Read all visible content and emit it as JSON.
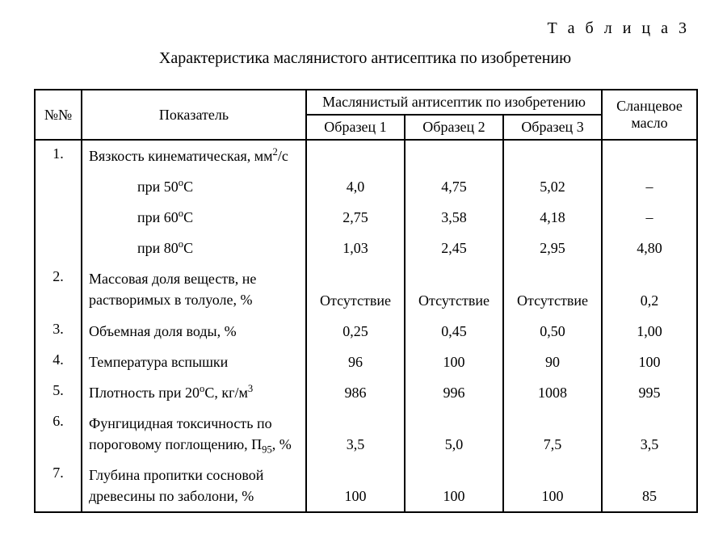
{
  "table_label": "Т а б л и ц а 3",
  "title": "Характеристика маслянистого антисептика по изобретению",
  "headers": {
    "num": "№№",
    "param": "Показатель",
    "group": "Маслянистый антисептик по изобретению",
    "s1": "Образец 1",
    "s2": "Образец 2",
    "s3": "Образец 3",
    "shale": "Сланцевое масло"
  },
  "rows": [
    {
      "num": "1.",
      "param_html": "Вязкость кинематическая, мм<sup>2</sup>/с",
      "s1": "",
      "s2": "",
      "s3": "",
      "shale": ""
    },
    {
      "num": "",
      "param_html": "<span class=\"indent\">при 50<sup>о</sup>С</span>",
      "s1": "4,0",
      "s2": "4,75",
      "s3": "5,02",
      "shale": "–"
    },
    {
      "num": "",
      "param_html": "<span class=\"indent\">при 60<sup>о</sup>С</span>",
      "s1": "2,75",
      "s2": "3,58",
      "s3": "4,18",
      "shale": "–"
    },
    {
      "num": "",
      "param_html": "<span class=\"indent\">при 80<sup>о</sup>С</span>",
      "s1": "1,03",
      "s2": "2,45",
      "s3": "2,95",
      "shale": "4,80"
    },
    {
      "num": "2.",
      "param_html": "Массовая доля веществ, не растворимых в толуоле, %",
      "s1": "Отсутствие",
      "s2": "Отсутствие",
      "s3": "Отсутствие",
      "shale": "0,2"
    },
    {
      "num": "3.",
      "param_html": "Объемная доля воды, %",
      "s1": "0,25",
      "s2": "0,45",
      "s3": "0,50",
      "shale": "1,00"
    },
    {
      "num": "4.",
      "param_html": "Температура вспышки",
      "s1": "96",
      "s2": "100",
      "s3": "90",
      "shale": "100"
    },
    {
      "num": "5.",
      "param_html": "Плотность при 20<sup>о</sup>С, кг/м<sup>3</sup>",
      "s1": "986",
      "s2": "996",
      "s3": "1008",
      "shale": "995"
    },
    {
      "num": "6.",
      "param_html": "Фунгицидная токсичность по пороговому поглощению, П<sub>95</sub>, %",
      "s1": "3,5",
      "s2": "5,0",
      "s3": "7,5",
      "shale": "3,5"
    },
    {
      "num": "7.",
      "param_html": "Глубина пропитки сосновой древесины по заболони, %",
      "s1": "100",
      "s2": "100",
      "s3": "100",
      "shale": "85"
    }
  ]
}
